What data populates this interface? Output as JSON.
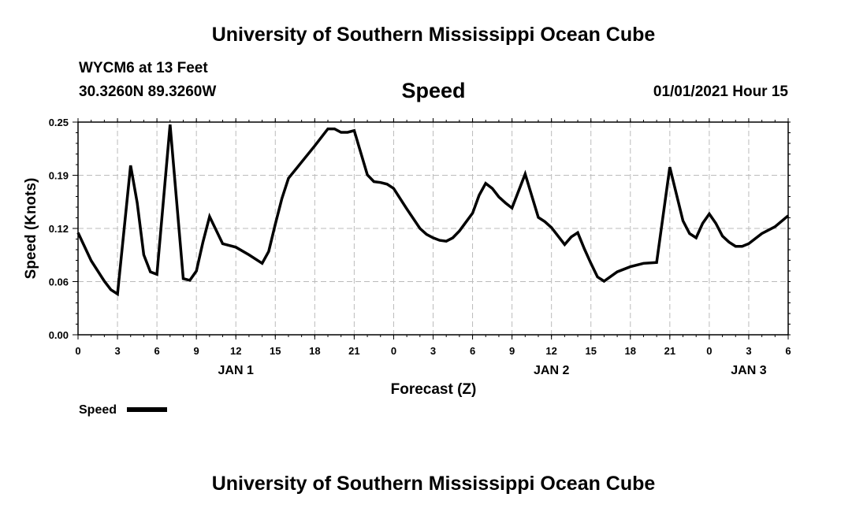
{
  "header": {
    "title": "University of Southern Mississippi Ocean Cube",
    "station": "WYCM6 at 13 Feet",
    "coordinates": "30.3260N 89.3260W",
    "chart_title": "Speed",
    "timestamp": "01/01/2021 Hour 15"
  },
  "footer": {
    "title": "University of Southern Mississippi Ocean Cube"
  },
  "chart_data": {
    "type": "line",
    "title": "Speed",
    "xlabel": "Forecast (Z)",
    "ylabel": "Speed (Knots)",
    "ylim": [
      0,
      0.25
    ],
    "xlim": [
      0,
      54
    ],
    "y_ticks": [
      "0.00",
      "0.06",
      "0.12",
      "0.19",
      "0.25"
    ],
    "y_tick_values": [
      0,
      0.0625,
      0.125,
      0.1875,
      0.25
    ],
    "x_ticks": [
      {
        "hour": 0,
        "label": "0"
      },
      {
        "hour": 3,
        "label": "3"
      },
      {
        "hour": 6,
        "label": "6"
      },
      {
        "hour": 9,
        "label": "9"
      },
      {
        "hour": 12,
        "label": "12"
      },
      {
        "hour": 15,
        "label": "15"
      },
      {
        "hour": 18,
        "label": "18"
      },
      {
        "hour": 21,
        "label": "21"
      },
      {
        "hour": 24,
        "label": "0"
      },
      {
        "hour": 27,
        "label": "3"
      },
      {
        "hour": 30,
        "label": "6"
      },
      {
        "hour": 33,
        "label": "9"
      },
      {
        "hour": 36,
        "label": "12"
      },
      {
        "hour": 39,
        "label": "15"
      },
      {
        "hour": 42,
        "label": "18"
      },
      {
        "hour": 45,
        "label": "21"
      },
      {
        "hour": 48,
        "label": "0"
      },
      {
        "hour": 51,
        "label": "3"
      },
      {
        "hour": 54,
        "label": "6"
      }
    ],
    "day_labels": [
      {
        "hour": 12,
        "label": "JAN 1"
      },
      {
        "hour": 36,
        "label": "JAN 2"
      },
      {
        "hour": 51,
        "label": "JAN 3"
      }
    ],
    "grid": true,
    "legend_position": "bottom-left",
    "series": [
      {
        "name": "Speed",
        "color": "#000000",
        "x": [
          0,
          1,
          2,
          2.5,
          3,
          4,
          4.5,
          5,
          5.5,
          6,
          7,
          8,
          8.5,
          9,
          9.5,
          10,
          11,
          12,
          13,
          14,
          14.5,
          15,
          15.5,
          16,
          17,
          18,
          19,
          19.5,
          20,
          20.5,
          21,
          22,
          22.5,
          23,
          23.5,
          24,
          25,
          26,
          26.5,
          27,
          27.5,
          28,
          28.5,
          29,
          30,
          30.5,
          31,
          31.5,
          32,
          32.5,
          33,
          34,
          35,
          35.5,
          36,
          37,
          37.5,
          38,
          38.5,
          39,
          39.5,
          40,
          41,
          42,
          43,
          44,
          45,
          46,
          46.5,
          47,
          47.5,
          48,
          48.5,
          49,
          49.5,
          50,
          50.5,
          51,
          52,
          53,
          54
        ],
        "y": [
          0.12,
          0.087,
          0.063,
          0.053,
          0.048,
          0.199,
          0.155,
          0.094,
          0.074,
          0.071,
          0.247,
          0.066,
          0.064,
          0.075,
          0.109,
          0.139,
          0.107,
          0.103,
          0.094,
          0.084,
          0.098,
          0.13,
          0.16,
          0.184,
          0.203,
          0.222,
          0.242,
          0.242,
          0.238,
          0.238,
          0.24,
          0.188,
          0.18,
          0.179,
          0.177,
          0.172,
          0.148,
          0.125,
          0.118,
          0.114,
          0.111,
          0.11,
          0.114,
          0.122,
          0.143,
          0.164,
          0.178,
          0.172,
          0.162,
          0.155,
          0.149,
          0.189,
          0.138,
          0.133,
          0.126,
          0.106,
          0.115,
          0.12,
          0.101,
          0.084,
          0.068,
          0.063,
          0.074,
          0.08,
          0.084,
          0.085,
          0.197,
          0.134,
          0.119,
          0.114,
          0.131,
          0.142,
          0.131,
          0.116,
          0.109,
          0.104,
          0.104,
          0.107,
          0.119,
          0.127,
          0.14
        ]
      }
    ]
  }
}
